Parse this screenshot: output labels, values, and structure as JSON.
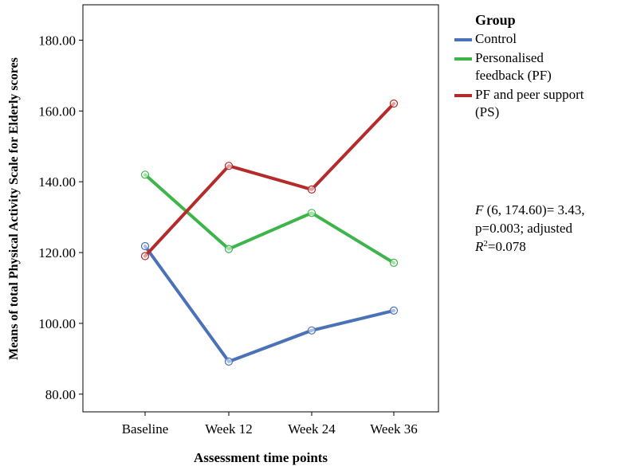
{
  "chart_data": {
    "type": "line",
    "xlabel": "Assessment time points",
    "ylabel": "Means of total Physical Activity Scale for Elderly scores",
    "categories": [
      "Baseline",
      "Week 12",
      "Week 24",
      "Week 36"
    ],
    "ylim": [
      75,
      190
    ],
    "yticks": [
      "80.00",
      "100.00",
      "120.00",
      "140.00",
      "160.00",
      "180.00"
    ],
    "series": [
      {
        "name": "Control",
        "color": "#4a72b8",
        "values": [
          121.8,
          89.2,
          98.0,
          103.6
        ]
      },
      {
        "name": "Personalised feedback (PF)",
        "color": "#3db54a",
        "values": [
          142.0,
          121.0,
          131.2,
          117.1
        ]
      },
      {
        "name": "PF and peer support (PS)",
        "color": "#b52a2a",
        "values": [
          119.0,
          144.5,
          137.8,
          162.1
        ]
      }
    ],
    "grid": false,
    "legend_placement": "right",
    "legend_title": "Group",
    "legend_lines": [
      [
        "Control"
      ],
      [
        "Personalised",
        "feedback (PF)"
      ],
      [
        "PF and peer support",
        "(PS)"
      ]
    ],
    "annotation": {
      "f_symbol": "F",
      "f_rest": " (6, 174.60)= 3.43,",
      "line2": "p=0.003; adjusted",
      "r_symbol": "R",
      "r_exp": "2",
      "r_value": "=0.078"
    }
  }
}
